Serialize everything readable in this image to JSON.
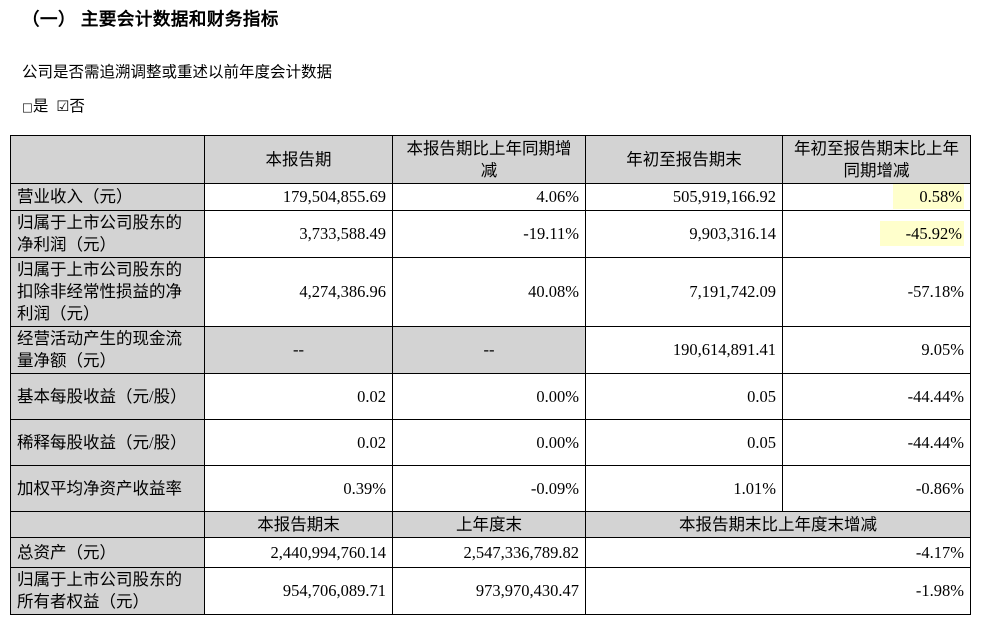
{
  "page": {
    "title": "（一） 主要会计数据和财务指标",
    "restate_question": "公司是否需追溯调整或重述以前年度会计数据",
    "yes_label": "是",
    "no_label": "否",
    "yes_checked": false,
    "no_checked": true
  },
  "icons": {
    "checkbox_unchecked": "□",
    "checkbox_checked": "☑"
  },
  "colors": {
    "cell_gray": "#d3d3d3",
    "highlight_yellow": "#ffffcc",
    "border": "#000000"
  },
  "table": {
    "section1": {
      "column_headers": [
        "",
        "本报告期",
        "本报告期比上年同期增减",
        "年初至报告期末",
        "年初至报告期末比上年同期增减"
      ],
      "rows": [
        {
          "label": "营业收入（元）",
          "values": [
            "179,504,855.69",
            "4.06%",
            "505,919,166.92",
            "0.58%"
          ],
          "dash_cols": [],
          "highlight_cols": [
            3
          ]
        },
        {
          "label": "归属于上市公司股东的净利润（元）",
          "values": [
            "3,733,588.49",
            "-19.11%",
            "9,903,316.14",
            "-45.92%"
          ],
          "dash_cols": [],
          "highlight_cols": [
            3
          ]
        },
        {
          "label": "归属于上市公司股东的扣除非经常性损益的净利润（元）",
          "values": [
            "4,274,386.96",
            "40.08%",
            "7,191,742.09",
            "-57.18%"
          ],
          "dash_cols": [],
          "highlight_cols": []
        },
        {
          "label": "经营活动产生的现金流量净额（元）",
          "values": [
            "--",
            "--",
            "190,614,891.41",
            "9.05%"
          ],
          "dash_cols": [
            0,
            1
          ],
          "highlight_cols": []
        },
        {
          "label": "基本每股收益（元/股）",
          "values": [
            "0.02",
            "0.00%",
            "0.05",
            "-44.44%"
          ],
          "dash_cols": [],
          "highlight_cols": []
        },
        {
          "label": "稀释每股收益（元/股）",
          "values": [
            "0.02",
            "0.00%",
            "0.05",
            "-44.44%"
          ],
          "dash_cols": [],
          "highlight_cols": []
        },
        {
          "label": "加权平均净资产收益率",
          "values": [
            "0.39%",
            "-0.09%",
            "1.01%",
            "-0.86%"
          ],
          "dash_cols": [],
          "highlight_cols": []
        }
      ]
    },
    "section2": {
      "column_headers": [
        "",
        "本报告期末",
        "上年度末",
        "本报告期末比上年度末增减"
      ],
      "rows": [
        {
          "label": "总资产（元）",
          "values": [
            "2,440,994,760.14",
            "2,547,336,789.82",
            "-4.17%"
          ]
        },
        {
          "label": "归属于上市公司股东的所有者权益（元）",
          "values": [
            "954,706,089.71",
            "973,970,430.47",
            "-1.98%"
          ]
        }
      ]
    }
  }
}
